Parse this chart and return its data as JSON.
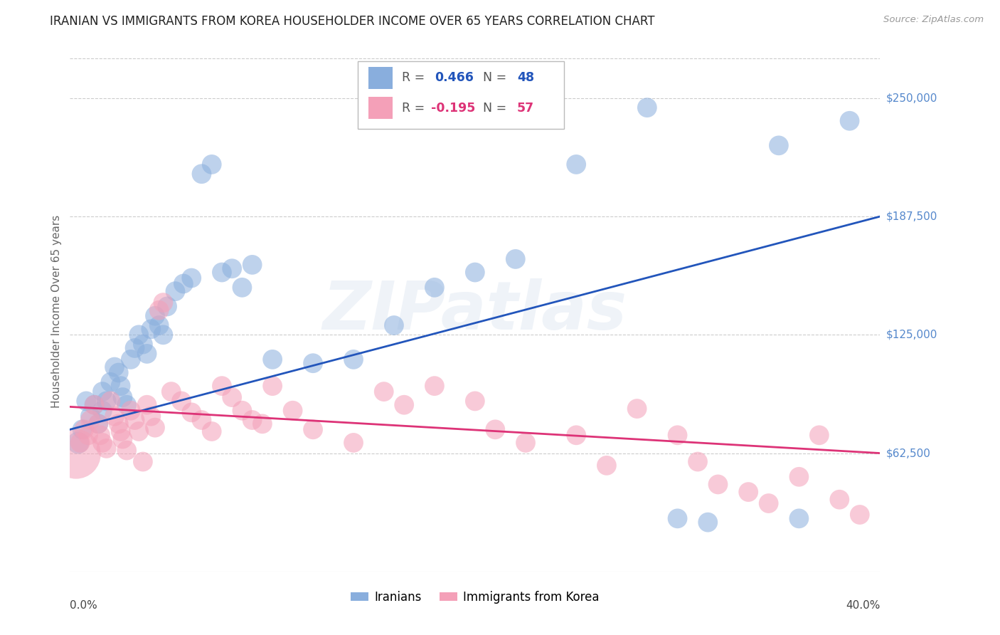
{
  "title": "IRANIAN VS IMMIGRANTS FROM KOREA HOUSEHOLDER INCOME OVER 65 YEARS CORRELATION CHART",
  "source": "Source: ZipAtlas.com",
  "ylabel": "Householder Income Over 65 years",
  "legend_iranians_label": "Iranians",
  "legend_korea_label": "Immigrants from Korea",
  "R_iranians": "0.466",
  "N_iranians": "48",
  "R_korea": "-0.195",
  "N_korea": "57",
  "y_ticks": [
    62500,
    125000,
    187500,
    250000
  ],
  "y_tick_labels": [
    "$62,500",
    "$125,000",
    "$187,500",
    "$250,000"
  ],
  "x_min": 0.0,
  "x_max": 0.4,
  "y_min": 0,
  "y_max": 275000,
  "color_iranians": "#89AEDD",
  "color_korea": "#F4A0B8",
  "color_line_iranians": "#2255BB",
  "color_line_korea": "#DD3377",
  "color_ytick_labels": "#5588CC",
  "watermark": "ZIPatlas",
  "iranians_x": [
    0.004,
    0.006,
    0.008,
    0.01,
    0.012,
    0.014,
    0.016,
    0.016,
    0.018,
    0.02,
    0.022,
    0.024,
    0.025,
    0.026,
    0.028,
    0.03,
    0.032,
    0.034,
    0.036,
    0.038,
    0.04,
    0.042,
    0.044,
    0.046,
    0.048,
    0.052,
    0.056,
    0.06,
    0.065,
    0.07,
    0.075,
    0.08,
    0.085,
    0.09,
    0.1,
    0.12,
    0.14,
    0.16,
    0.18,
    0.2,
    0.22,
    0.25,
    0.285,
    0.3,
    0.315,
    0.35,
    0.36,
    0.385
  ],
  "iranians_y": [
    68000,
    75000,
    90000,
    82000,
    88000,
    78000,
    95000,
    85000,
    90000,
    100000,
    108000,
    105000,
    98000,
    92000,
    88000,
    112000,
    118000,
    125000,
    120000,
    115000,
    128000,
    135000,
    130000,
    125000,
    140000,
    148000,
    152000,
    155000,
    210000,
    215000,
    158000,
    160000,
    150000,
    162000,
    112000,
    110000,
    112000,
    130000,
    150000,
    158000,
    165000,
    215000,
    245000,
    28000,
    26000,
    225000,
    28000,
    238000
  ],
  "iranians_sizes": [
    500,
    400,
    400,
    400,
    400,
    400,
    400,
    400,
    400,
    400,
    400,
    400,
    400,
    400,
    400,
    400,
    400,
    400,
    400,
    400,
    400,
    400,
    400,
    400,
    400,
    400,
    400,
    400,
    400,
    400,
    400,
    400,
    400,
    400,
    400,
    400,
    400,
    400,
    400,
    400,
    400,
    400,
    400,
    400,
    400,
    400,
    400,
    400
  ],
  "korea_x": [
    0.003,
    0.005,
    0.007,
    0.009,
    0.01,
    0.012,
    0.014,
    0.015,
    0.016,
    0.018,
    0.02,
    0.022,
    0.024,
    0.025,
    0.026,
    0.028,
    0.03,
    0.032,
    0.034,
    0.036,
    0.038,
    0.04,
    0.042,
    0.044,
    0.046,
    0.05,
    0.055,
    0.06,
    0.065,
    0.07,
    0.075,
    0.08,
    0.085,
    0.09,
    0.095,
    0.1,
    0.11,
    0.12,
    0.14,
    0.155,
    0.165,
    0.18,
    0.2,
    0.21,
    0.225,
    0.25,
    0.265,
    0.28,
    0.3,
    0.31,
    0.32,
    0.335,
    0.345,
    0.36,
    0.37,
    0.38,
    0.39
  ],
  "korea_y": [
    62000,
    68000,
    75000,
    72000,
    80000,
    88000,
    78000,
    72000,
    68000,
    65000,
    90000,
    82000,
    78000,
    74000,
    70000,
    64000,
    85000,
    80000,
    74000,
    58000,
    88000,
    82000,
    76000,
    138000,
    142000,
    95000,
    90000,
    84000,
    80000,
    74000,
    98000,
    92000,
    85000,
    80000,
    78000,
    98000,
    85000,
    75000,
    68000,
    95000,
    88000,
    98000,
    90000,
    75000,
    68000,
    72000,
    56000,
    86000,
    72000,
    58000,
    46000,
    42000,
    36000,
    50000,
    72000,
    38000,
    30000
  ],
  "korea_sizes": [
    2500,
    400,
    400,
    400,
    400,
    400,
    400,
    400,
    400,
    400,
    400,
    400,
    400,
    400,
    400,
    400,
    400,
    400,
    400,
    400,
    400,
    400,
    400,
    400,
    400,
    400,
    400,
    400,
    400,
    400,
    400,
    400,
    400,
    400,
    400,
    400,
    400,
    400,
    400,
    400,
    400,
    400,
    400,
    400,
    400,
    400,
    400,
    400,
    400,
    400,
    400,
    400,
    400,
    400,
    400,
    400,
    400
  ]
}
